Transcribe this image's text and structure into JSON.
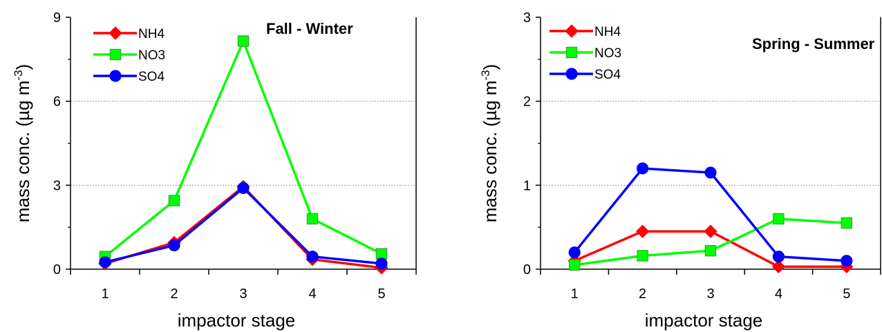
{
  "chart_data": [
    {
      "type": "line",
      "title": "Fall - Winter",
      "xlabel": "impactor stage",
      "ylabel_main": "mass conc. (µg m",
      "ylabel_sup": "-3",
      "ylabel_close": ")",
      "x": [
        1,
        2,
        3,
        4,
        5
      ],
      "xticks": [
        "1",
        "2",
        "3",
        "4",
        "5"
      ],
      "xlim": [
        0.5,
        5.5
      ],
      "ylim": [
        0,
        9
      ],
      "yticks": [
        0,
        3,
        6,
        9
      ],
      "ytick_labels": [
        "0",
        "3",
        "6",
        "9"
      ],
      "grid_y": [
        3,
        6
      ],
      "legend_placement": "top-left",
      "series": [
        {
          "name": "NH4",
          "marker": "diamond",
          "color": "#ff0000",
          "values": [
            0.2,
            0.95,
            2.95,
            0.35,
            0.05
          ]
        },
        {
          "name": "NO3",
          "marker": "square",
          "color": "#00ff00",
          "values": [
            0.45,
            2.45,
            8.15,
            1.8,
            0.55
          ]
        },
        {
          "name": "SO4",
          "marker": "circle",
          "color": "#0000ff",
          "values": [
            0.25,
            0.85,
            2.9,
            0.45,
            0.2
          ]
        }
      ]
    },
    {
      "type": "line",
      "title": "Spring - Summer",
      "xlabel": "impactor stage",
      "ylabel_main": "mass conc. (µg m",
      "ylabel_sup": "-3",
      "ylabel_close": ")",
      "x": [
        1,
        2,
        3,
        4,
        5
      ],
      "xticks": [
        "1",
        "2",
        "3",
        "4",
        "5"
      ],
      "xlim": [
        0.5,
        5.5
      ],
      "ylim": [
        0,
        3
      ],
      "yticks": [
        0,
        1,
        2,
        3
      ],
      "ytick_labels": [
        "0",
        "1",
        "2",
        "3"
      ],
      "grid_y": [
        1,
        2
      ],
      "legend_placement": "top-left",
      "series": [
        {
          "name": "NH4",
          "marker": "diamond",
          "color": "#ff0000",
          "values": [
            0.1,
            0.45,
            0.45,
            0.03,
            0.03
          ]
        },
        {
          "name": "NO3",
          "marker": "square",
          "color": "#00ff00",
          "values": [
            0.05,
            0.16,
            0.22,
            0.6,
            0.55
          ]
        },
        {
          "name": "SO4",
          "marker": "circle",
          "color": "#0000ff",
          "values": [
            0.2,
            1.2,
            1.15,
            0.15,
            0.1
          ]
        }
      ]
    }
  ]
}
